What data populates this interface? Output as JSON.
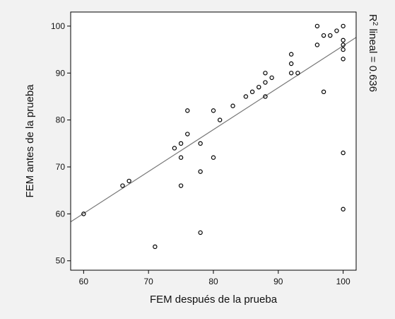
{
  "chart_data": {
    "type": "scatter",
    "xlabel": "FEM después de la prueba",
    "ylabel": "FEM antes de la prueba",
    "xlim": [
      58,
      102
    ],
    "ylim": [
      48,
      103
    ],
    "x_ticks": [
      60,
      70,
      80,
      90,
      100
    ],
    "y_ticks": [
      50,
      60,
      70,
      80,
      90,
      100
    ],
    "grid": false,
    "fit_line": {
      "type": "linear",
      "label": "R² lineal = 0.636",
      "label_main": "R",
      "label_sup": "2",
      "label_rest": " lineal = 0.636",
      "endpoints": [
        [
          58,
          58.3
        ],
        [
          102,
          97.6
        ]
      ]
    },
    "marker": "open-circle",
    "colors": {
      "plot_bg": "#ffffff",
      "page_bg": "#f2f2f2",
      "marker": "#000000",
      "fit_line": "#777777"
    },
    "points": [
      [
        60,
        60
      ],
      [
        66,
        66
      ],
      [
        67,
        67
      ],
      [
        71,
        53
      ],
      [
        74,
        74
      ],
      [
        75,
        75
      ],
      [
        75,
        72
      ],
      [
        75,
        66
      ],
      [
        76,
        82
      ],
      [
        76,
        77
      ],
      [
        78,
        75
      ],
      [
        78,
        69
      ],
      [
        78,
        56
      ],
      [
        80,
        82
      ],
      [
        80,
        72
      ],
      [
        81,
        80
      ],
      [
        83,
        83
      ],
      [
        85,
        85
      ],
      [
        86,
        86
      ],
      [
        87,
        87
      ],
      [
        88,
        90
      ],
      [
        88,
        88
      ],
      [
        88,
        85
      ],
      [
        89,
        89
      ],
      [
        92,
        94
      ],
      [
        92,
        92
      ],
      [
        92,
        90
      ],
      [
        93,
        90
      ],
      [
        96,
        100
      ],
      [
        96,
        96
      ],
      [
        97,
        98
      ],
      [
        97,
        86
      ],
      [
        98,
        98
      ],
      [
        99,
        99
      ],
      [
        100,
        100
      ],
      [
        100,
        97
      ],
      [
        100,
        96
      ],
      [
        100,
        95
      ],
      [
        100,
        93
      ],
      [
        100,
        73
      ],
      [
        100,
        61
      ]
    ]
  }
}
